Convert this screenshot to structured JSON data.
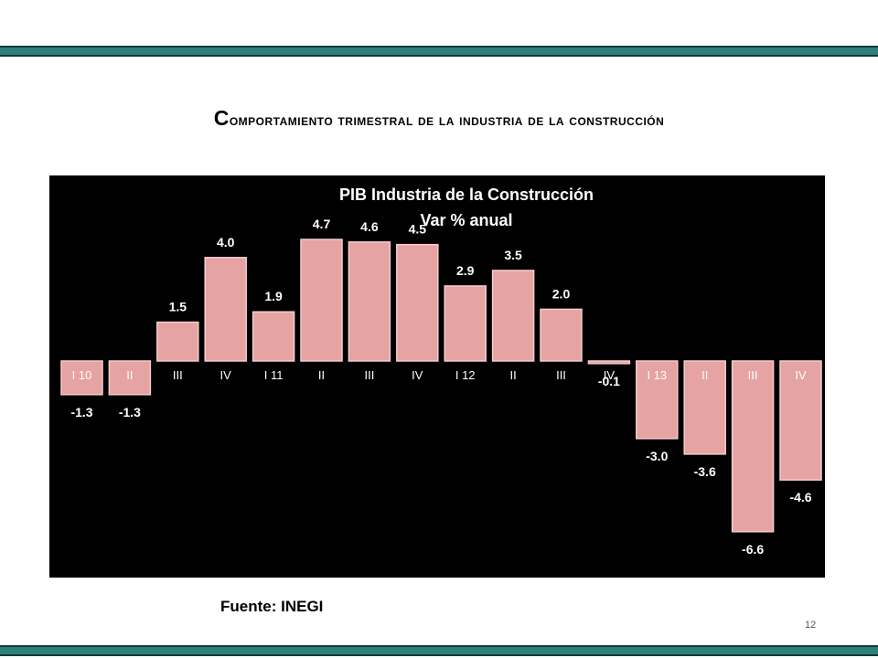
{
  "slide": {
    "title_first_letter": "C",
    "title_rest": "omportamiento trimestral de la industria de la construcción",
    "source": "Fuente: INEGI",
    "page_number": "12"
  },
  "colors": {
    "band": "#2e7f7c",
    "chart_background": "#000000",
    "bar_fill": "#e6a3a3",
    "text": "#ffffff"
  },
  "chart_data": {
    "type": "bar",
    "title": "PIB Industria de la Construcción",
    "subtitle": "Var % anual",
    "categories": [
      "I 10",
      "II",
      "III",
      "IV",
      "I 11",
      "II",
      "III",
      "IV",
      "I 12",
      "II",
      "III",
      "IV",
      "I 13",
      "II",
      "III",
      "IV"
    ],
    "values": [
      -1.3,
      -1.3,
      1.5,
      4.0,
      1.9,
      4.7,
      4.6,
      4.5,
      2.9,
      3.5,
      2.0,
      -0.1,
      -3.0,
      -3.6,
      -6.6,
      -4.6
    ],
    "data_labels": [
      "-1.3",
      "-1.3",
      "1.5",
      "4.0",
      "1.9",
      "4.7",
      "4.6",
      "4.5",
      "2.9",
      "3.5",
      "2.0",
      "-0.1",
      "-3.0",
      "-3.6",
      "-6.6",
      "-4.6"
    ],
    "ylim": [
      -6.6,
      4.7
    ],
    "grid": false,
    "legend": "none"
  }
}
